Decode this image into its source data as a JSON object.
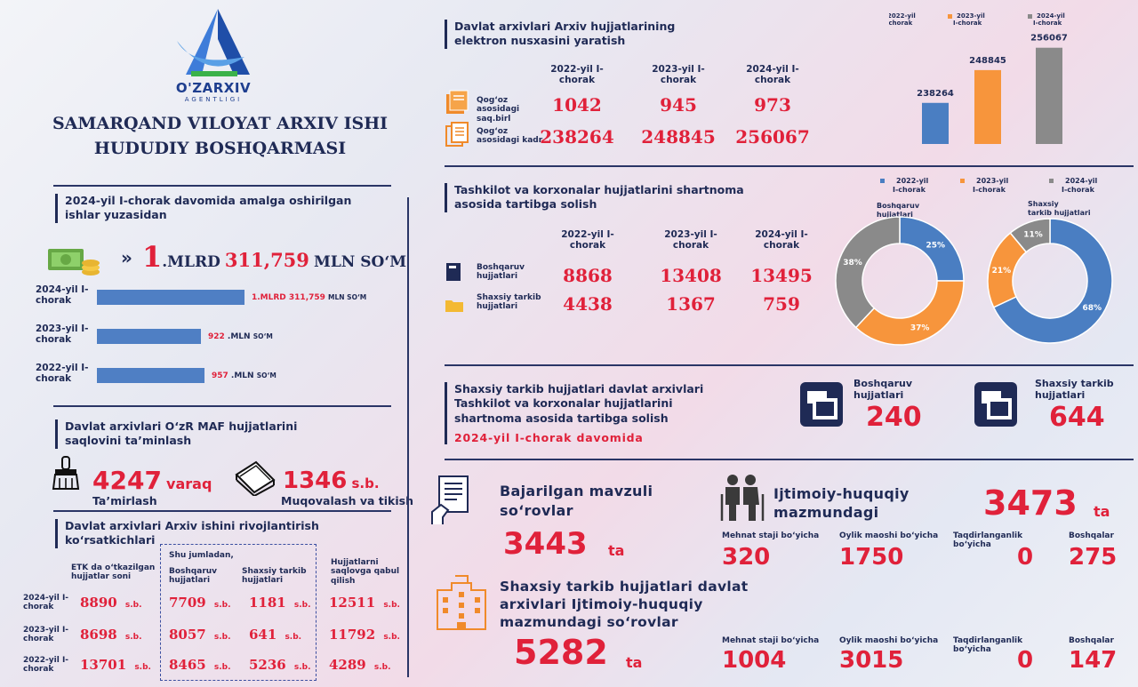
{
  "logo": {
    "brand": "O'ZARXIV",
    "sub": "AGENTLIGI"
  },
  "title": {
    "line1": "SAMARQAND VILOYAT ARXIV ISHI",
    "line2": "HUDUDIY BOSHQARMASI"
  },
  "revenue": {
    "heading": "2024-yil I-chorak davomida amalga oshirilgan ishlar yuzasidan",
    "total_a": "1",
    "total_b": ".MLRD",
    "total_c": "311,759",
    "total_d": "MLN SO‘M",
    "bars": [
      {
        "label": "2024-yil I-chorak",
        "v1": "1.MLRD",
        "v2": "311,759",
        "v3": "MLN SO‘M",
        "value": 1311.759
      },
      {
        "label": "2023-yil I-chorak",
        "v1": "922",
        "v2": ".MLN",
        "v3": "SO‘M",
        "value": 922
      },
      {
        "label": "2022-yil I-chorak",
        "v1": "957",
        "v2": ".MLN",
        "v3": "SO‘M",
        "value": 957
      }
    ]
  },
  "maf": {
    "heading": "Davlat arxivlari  O‘zR MAF hujjatlarini saqlovini ta’minlash",
    "repair_value": "4247",
    "repair_unit": "varaq",
    "repair_label": "Ta’mirlash",
    "pack_value": "1346",
    "pack_unit": "s.b.",
    "pack_label": "Muqovalash va tikish"
  },
  "dev": {
    "heading": "Davlat arxivlari Arxiv ishini rivojlantirish ko‘rsatkichlari",
    "col_etk": "ETK da o‘tkazilgan hujjatlar soni",
    "col_incl": "Shu jumladan,",
    "col_bosh": "Boshqaruv hujjatlari",
    "col_shax": "Shaxsiy tarkib hujjatlari",
    "col_qabul": "Hujjatlarni saqlovga qabul qilish",
    "unit": "s.b.",
    "rows": [
      {
        "label": "2024-yil I-chorak",
        "etk": "8890",
        "bosh": "7709",
        "shax": "1181",
        "qabul": "12511"
      },
      {
        "label": "2023-yil I-chorak",
        "etk": "8698",
        "bosh": "8057",
        "shax": "641",
        "qabul": "11792"
      },
      {
        "label": "2022-yil I-chorak",
        "etk": "13701",
        "bosh": "8465",
        "shax": "5236",
        "qabul": "4289"
      }
    ]
  },
  "digital": {
    "heading": "Davlat arxivlari Arxiv hujjatlarining elektron nusxasini yaratish",
    "cols": [
      "2022-yil I-chorak",
      "2023-yil I-chorak",
      "2024-yil I-chorak"
    ],
    "row1_label": "Qog‘oz asosidagi saq.birl",
    "row1": [
      "1042",
      "945",
      "973"
    ],
    "row2_label": "Qog‘oz asosidagi kadr",
    "row2": [
      "238264",
      "248845",
      "256067"
    ]
  },
  "contract": {
    "heading": "Tashkilot va korxonalar hujjatlarini shartnoma asosida tartibga solish",
    "cols": [
      "2022-yil I-chorak",
      "2023-yil I-chorak",
      "2024-yil I-chorak"
    ],
    "row1_label": "Boshqaruv hujjatlari",
    "row1": [
      "8868",
      "13408",
      "13495"
    ],
    "row2_label": "Shaxsiy tarkib hujjatlari",
    "row2": [
      "4438",
      "1367",
      "759"
    ]
  },
  "personal": {
    "heading": "Shaxsiy tarkib hujjatlari davlat arxivlari Tashkilot va korxonalar hujjatlarini shartnoma asosida tartibga solish",
    "period": "2024-yil I-chorak davomida",
    "bosh_label": "Boshqaruv hujjatlari",
    "bosh_value": "240",
    "shax_label": "Shaxsiy tarkib hujjatlari",
    "shax_value": "644"
  },
  "requests": {
    "title": "Bajarilgan mavzuli so‘rovlar",
    "value": "3443",
    "unit": "ta",
    "social_title": "Ijtimoiy-huquqiy mazmundagi",
    "social_value": "3473",
    "social_unit": "ta",
    "cats": [
      "Mehnat staji bo‘yicha",
      "Oylik maoshi bo‘yicha",
      "Taqdirlanganlik bo‘yicha",
      "Boshqalar"
    ],
    "row1": [
      "320",
      "1750",
      "0",
      "275"
    ],
    "sub_title": "Shaxsiy tarkib hujjatlari davlat arxivlari Ijtimoiy-huquqiy mazmundagi so‘rovlar",
    "sub_value": "5282",
    "sub_unit": "ta",
    "row2": [
      "1004",
      "3015",
      "0",
      "147"
    ]
  },
  "chart_data": [
    {
      "type": "bar",
      "title": "",
      "categories": [
        "2022-yil I-chorak",
        "2023-yil I-chorak",
        "2024-yil I-chorak"
      ],
      "values": [
        238264,
        248845,
        256067
      ],
      "colors": [
        "#4a7ec2",
        "#f7953c",
        "#8a8a8a"
      ],
      "legend": "top",
      "ylim": [
        225000,
        260000
      ]
    },
    {
      "type": "pie",
      "title": "Boshqaruv hujjatlari",
      "labels": [
        "2022-yil I-chorak",
        "2023-yil I-chorak",
        "2024-yil I-chorak"
      ],
      "values": [
        25,
        37,
        38
      ],
      "colors": [
        "#4a7ec2",
        "#f7953c",
        "#8a8a8a"
      ],
      "legend": "top"
    },
    {
      "type": "pie",
      "title": "Shaxsiy tarkib hujjatlari",
      "labels": [
        "2022-yil I-chorak",
        "2023-yil I-chorak",
        "2024-yil I-chorak"
      ],
      "values": [
        68,
        21,
        11
      ],
      "colors": [
        "#4a7ec2",
        "#f7953c",
        "#8a8a8a"
      ],
      "legend": "top"
    }
  ]
}
